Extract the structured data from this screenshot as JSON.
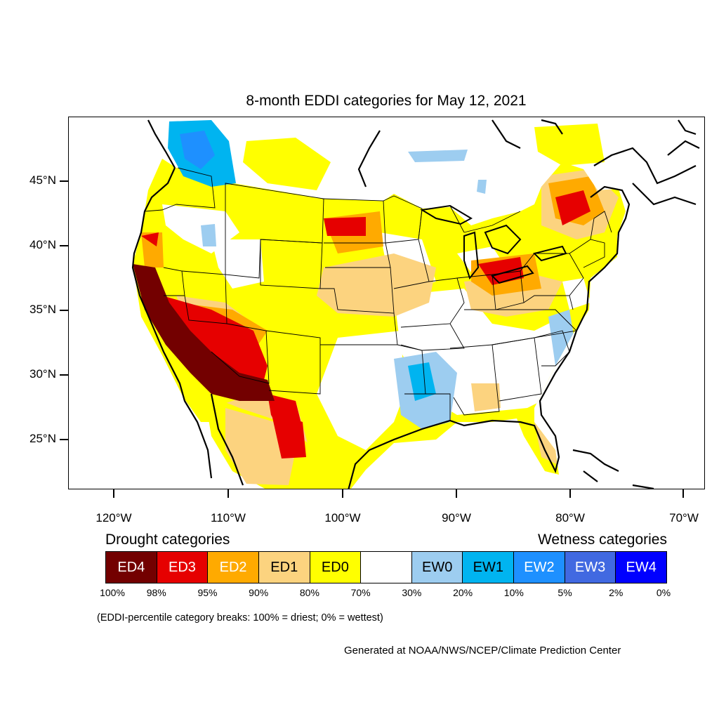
{
  "title": "8-month EDDI categories for May 12, 2021",
  "axes": {
    "lat_labels": [
      "45°N",
      "40°N",
      "35°N",
      "30°N",
      "25°N"
    ],
    "lon_labels": [
      "120°W",
      "110°W",
      "100°W",
      "90°W",
      "80°W",
      "70°W"
    ]
  },
  "legend": {
    "drought_heading": "Drought categories",
    "wetness_heading": "Wetness categories",
    "categories": [
      {
        "label": "ED4",
        "color": "#730000",
        "text_color": "#ffffff"
      },
      {
        "label": "ED3",
        "color": "#e60000",
        "text_color": "#ffffff"
      },
      {
        "label": "ED2",
        "color": "#ffaa00",
        "text_color": "#ffffff"
      },
      {
        "label": "ED1",
        "color": "#fcd37f",
        "text_color": "#000000"
      },
      {
        "label": "ED0",
        "color": "#ffff00",
        "text_color": "#000000"
      },
      {
        "label": "",
        "color": "#ffffff",
        "text_color": "#000000"
      },
      {
        "label": "EW0",
        "color": "#9dcdf0",
        "text_color": "#000000"
      },
      {
        "label": "EW1",
        "color": "#00b4f0",
        "text_color": "#000000"
      },
      {
        "label": "EW2",
        "color": "#1e90ff",
        "text_color": "#ffffff"
      },
      {
        "label": "EW3",
        "color": "#4169e1",
        "text_color": "#ffffff"
      },
      {
        "label": "EW4",
        "color": "#0000ff",
        "text_color": "#ffffff"
      }
    ],
    "percentiles": [
      "100%",
      "98%",
      "95%",
      "90%",
      "80%",
      "70%",
      "30%",
      "20%",
      "10%",
      "5%",
      "2%",
      "0%"
    ]
  },
  "note": "(EDDI-percentile category breaks: 100% = driest; 0% = wettest)",
  "credit": "Generated at NOAA/NWS/NCEP/Climate Prediction Center"
}
